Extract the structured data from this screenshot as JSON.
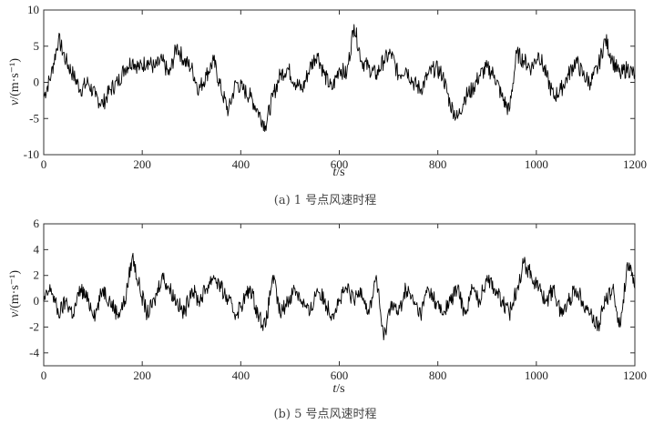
{
  "chart_data": [
    {
      "id": "a",
      "type": "line",
      "caption": "(a) 1 号点风速时程",
      "xlabel_var": "t",
      "xlabel_unit": "/s",
      "ylabel_var": "v",
      "ylabel_unit": "/(m·s⁻¹)",
      "xlim": [
        0,
        1200
      ],
      "ylim": [
        -10,
        10
      ],
      "xticks": [
        0,
        200,
        400,
        600,
        800,
        1000,
        1200
      ],
      "yticks": [
        -10,
        -5,
        0,
        5,
        10
      ],
      "grid": false,
      "legend": "none",
      "line_color": "#000000",
      "series": [
        {
          "x": [
            0,
            15,
            30,
            45,
            60,
            75,
            90,
            105,
            120,
            135,
            150,
            165,
            180,
            195,
            210,
            225,
            240,
            255,
            270,
            285,
            300,
            315,
            330,
            345,
            360,
            375,
            390,
            405,
            420,
            435,
            450,
            465,
            480,
            495,
            510,
            525,
            540,
            555,
            570,
            585,
            600,
            615,
            630,
            645,
            660,
            675,
            690,
            705,
            720,
            735,
            750,
            765,
            780,
            795,
            810,
            825,
            840,
            855,
            870,
            885,
            900,
            915,
            930,
            945,
            960,
            975,
            990,
            1005,
            1020,
            1035,
            1050,
            1065,
            1080,
            1095,
            1110,
            1125,
            1140,
            1155,
            1170,
            1185,
            1200
          ],
          "values": [
            -2,
            1,
            6,
            3,
            1,
            -1,
            0,
            -2,
            -3,
            -1,
            0,
            2,
            3,
            2,
            3,
            2,
            3,
            1,
            5,
            3,
            2,
            -1,
            1,
            3,
            -1,
            -4,
            0,
            -1,
            -2,
            -4,
            -6,
            -2,
            1,
            2,
            0,
            -1,
            2,
            4,
            1,
            -1,
            2,
            1,
            8,
            3,
            2,
            1,
            3,
            4,
            1,
            2,
            0,
            -1,
            1,
            2,
            1,
            -3,
            -5,
            -2,
            -1,
            1,
            2,
            1,
            -2,
            -4,
            4,
            3,
            2,
            4,
            1,
            -2,
            -1,
            1,
            3,
            1,
            0,
            2,
            6,
            3,
            1,
            2,
            1
          ]
        }
      ]
    },
    {
      "id": "b",
      "type": "line",
      "caption": "(b) 5 号点风速时程",
      "xlabel_var": "t",
      "xlabel_unit": "/s",
      "ylabel_var": "v",
      "ylabel_unit": "/(m·s⁻¹)",
      "xlim": [
        0,
        1200
      ],
      "ylim": [
        -5,
        6
      ],
      "xticks": [
        0,
        200,
        400,
        600,
        800,
        1000,
        1200
      ],
      "yticks": [
        -4,
        -2,
        0,
        2,
        4,
        6
      ],
      "grid": false,
      "legend": "none",
      "line_color": "#000000",
      "series": [
        {
          "x": [
            0,
            15,
            30,
            45,
            60,
            75,
            90,
            105,
            120,
            135,
            150,
            165,
            180,
            195,
            210,
            225,
            240,
            255,
            270,
            285,
            300,
            315,
            330,
            345,
            360,
            375,
            390,
            405,
            420,
            435,
            450,
            465,
            480,
            495,
            510,
            525,
            540,
            555,
            570,
            585,
            600,
            615,
            630,
            645,
            660,
            675,
            690,
            705,
            720,
            735,
            750,
            765,
            780,
            795,
            810,
            825,
            840,
            855,
            870,
            885,
            900,
            915,
            930,
            945,
            960,
            975,
            990,
            1005,
            1020,
            1035,
            1050,
            1065,
            1080,
            1095,
            1110,
            1125,
            1140,
            1155,
            1170,
            1185,
            1200
          ],
          "values": [
            0,
            1,
            -1,
            0,
            -1,
            1,
            0,
            -1,
            1,
            0,
            -1,
            0,
            3.5,
            1,
            -1,
            0,
            2,
            1,
            0,
            -1,
            1,
            0,
            1,
            2,
            1,
            0,
            -1,
            0,
            1,
            -1,
            -2,
            2,
            -1,
            0,
            1,
            0,
            -1,
            1,
            0,
            -1,
            0,
            1,
            0,
            1,
            -1,
            2,
            -3,
            0,
            -1,
            1,
            0,
            -1,
            1,
            0,
            -1,
            0,
            1,
            -1,
            1,
            0,
            2,
            1,
            0,
            -1,
            1,
            3,
            2,
            1,
            0,
            1,
            -1,
            0,
            1,
            0,
            -1,
            -2,
            0,
            1,
            -2,
            3,
            1
          ]
        }
      ]
    }
  ]
}
